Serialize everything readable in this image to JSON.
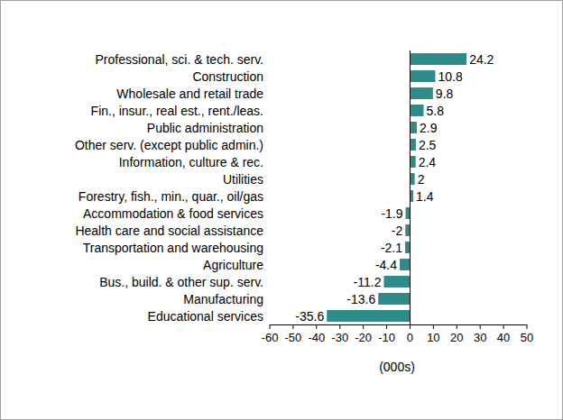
{
  "chart_data": {
    "type": "bar",
    "orientation": "horizontal",
    "categories": [
      "Professional, sci. & tech. serv.",
      "Construction",
      "Wholesale and retail trade",
      "Fin., insur., real est., rent./leas.",
      "Public administration",
      "Other serv. (except public admin.)",
      "Information, culture & rec.",
      "Utilities",
      "Forestry, fish., min., quar., oil/gas",
      "Accommodation & food services",
      "Health care and social assistance",
      "Transportation and warehousing",
      "Agriculture",
      "Bus., build. & other sup. serv.",
      "Manufacturing",
      "Educational services"
    ],
    "values": [
      24.2,
      10.8,
      9.8,
      5.8,
      2.9,
      2.5,
      2.4,
      2.0,
      1.4,
      -1.9,
      -2.0,
      -2.1,
      -4.4,
      -11.2,
      -13.6,
      -35.6
    ],
    "color": "#2e8b87",
    "xlabel": "(000s)",
    "xlim": [
      -60,
      50
    ],
    "xticks": [
      -60,
      -50,
      -40,
      -30,
      -20,
      -10,
      0,
      10,
      20,
      30,
      40,
      50
    ],
    "data_labels": true,
    "grid": false
  }
}
